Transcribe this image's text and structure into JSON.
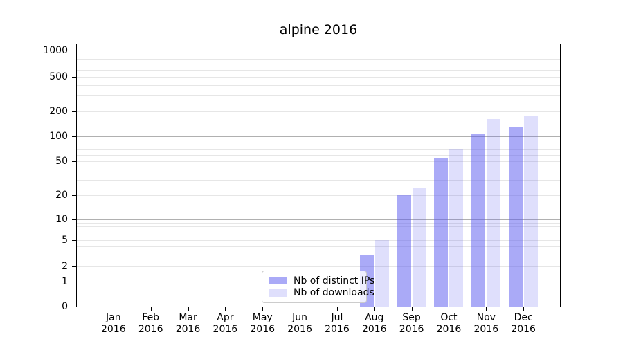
{
  "title": "alpine 2016",
  "chart_data": {
    "type": "bar",
    "title": "alpine 2016",
    "categories": [
      "Jan 2016",
      "Feb 2016",
      "Mar 2016",
      "Apr 2016",
      "May 2016",
      "Jun 2016",
      "Jul 2016",
      "Aug 2016",
      "Sep 2016",
      "Oct 2016",
      "Nov 2016",
      "Dec 2016"
    ],
    "series": [
      {
        "name": "Nb of distinct IPs",
        "color": "rgba(85,85,240,0.50)",
        "values": [
          0,
          0,
          0,
          0,
          0,
          0,
          0,
          3,
          20,
          55,
          107,
          128
        ]
      },
      {
        "name": "Nb of downloads",
        "color": "rgba(85,85,240,0.19)",
        "values": [
          0,
          0,
          0,
          0,
          0,
          0,
          0,
          5,
          24,
          70,
          160,
          172
        ]
      }
    ],
    "yscale": "log-like (compressed near zero, includes 0)",
    "yticks": [
      0,
      1,
      2,
      5,
      10,
      20,
      50,
      100,
      200,
      500,
      1000
    ],
    "ylim": [
      0,
      1200
    ],
    "xlabel": "",
    "ylabel": "",
    "grid": "both (major darker, minor lighter)",
    "legend_position": "lower center"
  },
  "colors": {
    "bar_distinct_ips": "#a9a9fb",
    "bar_downloads": "#dcdcfb",
    "grid_major": "#b0b0b0",
    "grid_minor": "#e6e6e6",
    "axis": "#000000",
    "legend_border": "#cccccc",
    "legend_bg": "rgba(255,255,255,0.8)"
  }
}
